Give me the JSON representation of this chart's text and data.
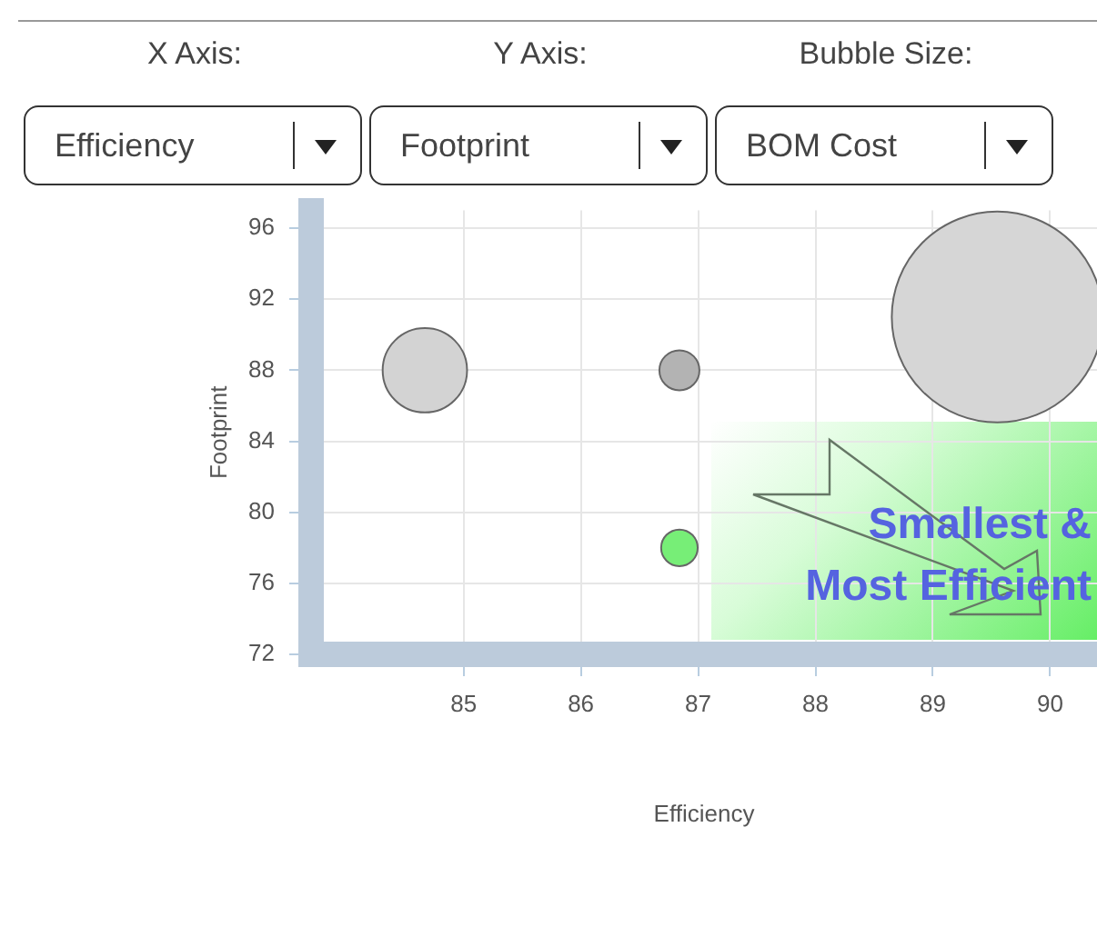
{
  "chart_data": {
    "type": "bubble",
    "xlabel": "Efficiency",
    "ylabel": "Footprint",
    "x": [
      84.67,
      86.84,
      86.84,
      89.55
    ],
    "values": [
      88,
      88,
      78,
      91
    ],
    "sizes": [
      0.16,
      0.036,
      0.03,
      1
    ],
    "colors": [
      "#d3d3d3",
      "#b3b3b3",
      "#77ee77",
      "#d6d6d6"
    ],
    "xlim": [
      83.7,
      90.4
    ],
    "xticks": [
      85,
      86,
      87,
      88,
      89,
      90
    ],
    "ylim": [
      72,
      97
    ],
    "yticks": [
      72,
      76,
      80,
      84,
      88,
      92,
      96
    ],
    "grid": true,
    "legend": false,
    "annotations": [
      "X Axis:",
      "Y Axis:",
      "Bubble Size:",
      "Efficiency",
      "Footprint",
      "BOM Cost",
      "Smallest &\nMost Efficient"
    ]
  }
}
